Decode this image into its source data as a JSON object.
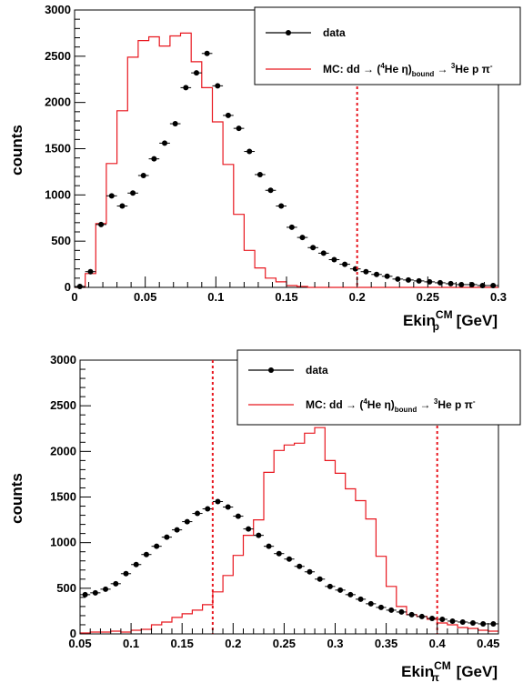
{
  "chart_data": [
    {
      "type": "histogram",
      "xlabel": {
        "main": "Ekin",
        "sub": "p",
        "sup": "CM",
        "unit": " [GeV]"
      },
      "ylabel": "counts",
      "xlim": [
        0,
        0.3
      ],
      "ylim": [
        0,
        3000
      ],
      "xticks": [
        0,
        0.05,
        0.1,
        0.15,
        0.2,
        0.25,
        0.3
      ],
      "xtick_labels": [
        "0",
        "0.05",
        "0.1",
        "0.15",
        "0.2",
        "0.25",
        "0.3"
      ],
      "yticks": [
        0,
        500,
        1000,
        1500,
        2000,
        2500,
        3000
      ],
      "ytick_labels": [
        "0",
        "500",
        "1000",
        "1500",
        "2000",
        "2500",
        "3000"
      ],
      "cut_lines": [
        0.2
      ],
      "legend": {
        "data_label": "data",
        "mc_parts": [
          "MC: dd",
          " → ",
          " (",
          "4",
          "He η)",
          "bound",
          " → ",
          "3",
          "He p π",
          "-"
        ]
      },
      "series": [
        {
          "name": "data",
          "kind": "points",
          "bin_width": 0.0075,
          "x": [
            0.00375,
            0.01125,
            0.01875,
            0.02625,
            0.03375,
            0.04125,
            0.04875,
            0.05625,
            0.06375,
            0.07125,
            0.07875,
            0.08625,
            0.09375,
            0.10125,
            0.10875,
            0.11625,
            0.12375,
            0.13125,
            0.13875,
            0.14625,
            0.15375,
            0.16125,
            0.16875,
            0.17625,
            0.18375,
            0.19125,
            0.19875,
            0.20625,
            0.21375,
            0.22125,
            0.22875,
            0.23625,
            0.24375,
            0.25125,
            0.25875,
            0.26625,
            0.27375,
            0.28125,
            0.28875,
            0.29625
          ],
          "y": [
            10,
            170,
            680,
            990,
            880,
            1020,
            1210,
            1390,
            1560,
            1770,
            2160,
            2320,
            2530,
            2180,
            1860,
            1720,
            1470,
            1220,
            1050,
            880,
            650,
            540,
            430,
            370,
            300,
            250,
            200,
            170,
            140,
            120,
            90,
            80,
            70,
            60,
            50,
            40,
            30,
            30,
            20,
            20
          ]
        },
        {
          "name": "MC",
          "kind": "step",
          "bin_edges": [
            0,
            0.0075,
            0.015,
            0.0225,
            0.03,
            0.0375,
            0.045,
            0.0525,
            0.06,
            0.0675,
            0.075,
            0.0825,
            0.09,
            0.0975,
            0.105,
            0.1125,
            0.12,
            0.1275,
            0.135,
            0.1425,
            0.15,
            0.1575,
            0.165,
            0.1725,
            0.18,
            0.1875,
            0.195,
            0.2025,
            0.21,
            0.2175,
            0.225,
            0.2325,
            0.24,
            0.2475,
            0.255,
            0.2625,
            0.27,
            0.2775,
            0.285,
            0.2925,
            0.3
          ],
          "values": [
            0,
            150,
            690,
            1340,
            1910,
            2490,
            2670,
            2710,
            2610,
            2720,
            2750,
            2440,
            2160,
            1790,
            1330,
            790,
            400,
            210,
            100,
            60,
            20,
            10,
            0,
            0,
            0,
            0,
            0,
            0,
            0,
            0,
            0,
            0,
            0,
            0,
            0,
            0,
            0,
            0,
            0,
            0
          ]
        }
      ]
    },
    {
      "type": "histogram",
      "xlabel": {
        "main": "Ekin",
        "sub": "π",
        "sup": "CM",
        "unit": " [GeV]"
      },
      "ylabel": "counts",
      "xlim": [
        0.05,
        0.46
      ],
      "ylim": [
        0,
        3000
      ],
      "xticks": [
        0.05,
        0.1,
        0.15,
        0.2,
        0.25,
        0.3,
        0.35,
        0.4,
        0.45
      ],
      "xtick_labels": [
        "0.05",
        "0.1",
        "0.15",
        "0.2",
        "0.25",
        "0.3",
        "0.35",
        "0.4",
        "0.45"
      ],
      "yticks": [
        0,
        500,
        1000,
        1500,
        2000,
        2500,
        3000
      ],
      "ytick_labels": [
        "0",
        "500",
        "1000",
        "1500",
        "2000",
        "2500",
        "3000"
      ],
      "cut_lines": [
        0.18,
        0.4
      ],
      "legend": {
        "data_label": "data",
        "mc_parts": [
          "MC: dd",
          " → ",
          " (",
          "4",
          "He η)",
          "bound",
          " → ",
          "3",
          "He p π",
          "-"
        ]
      },
      "series": [
        {
          "name": "data",
          "kind": "points",
          "bin_width": 0.01,
          "x": [
            0.055,
            0.065,
            0.075,
            0.085,
            0.095,
            0.105,
            0.115,
            0.125,
            0.135,
            0.145,
            0.155,
            0.165,
            0.175,
            0.185,
            0.195,
            0.205,
            0.215,
            0.225,
            0.235,
            0.245,
            0.255,
            0.265,
            0.275,
            0.285,
            0.295,
            0.305,
            0.315,
            0.325,
            0.335,
            0.345,
            0.355,
            0.365,
            0.375,
            0.385,
            0.395,
            0.405,
            0.415,
            0.425,
            0.435,
            0.445,
            0.455
          ],
          "y": [
            430,
            450,
            490,
            550,
            660,
            760,
            870,
            960,
            1060,
            1140,
            1230,
            1320,
            1370,
            1450,
            1390,
            1290,
            1150,
            1080,
            960,
            880,
            820,
            740,
            680,
            600,
            520,
            480,
            430,
            380,
            330,
            290,
            260,
            240,
            210,
            190,
            170,
            160,
            140,
            130,
            120,
            110,
            110
          ]
        },
        {
          "name": "MC",
          "kind": "step",
          "bin_edges": [
            0.05,
            0.06,
            0.07,
            0.08,
            0.09,
            0.1,
            0.11,
            0.12,
            0.13,
            0.14,
            0.15,
            0.16,
            0.17,
            0.18,
            0.19,
            0.2,
            0.21,
            0.22,
            0.23,
            0.24,
            0.25,
            0.26,
            0.27,
            0.28,
            0.29,
            0.3,
            0.31,
            0.32,
            0.33,
            0.34,
            0.35,
            0.36,
            0.37,
            0.38,
            0.39,
            0.4,
            0.41,
            0.42,
            0.43,
            0.44,
            0.45,
            0.46
          ],
          "values": [
            10,
            20,
            20,
            30,
            20,
            40,
            50,
            100,
            130,
            180,
            220,
            260,
            320,
            460,
            640,
            860,
            1080,
            1250,
            1770,
            2010,
            2070,
            2090,
            2200,
            2260,
            1900,
            1760,
            1590,
            1460,
            1260,
            850,
            520,
            300,
            210,
            190,
            160,
            120,
            100,
            70,
            60,
            40,
            30
          ]
        }
      ]
    }
  ]
}
